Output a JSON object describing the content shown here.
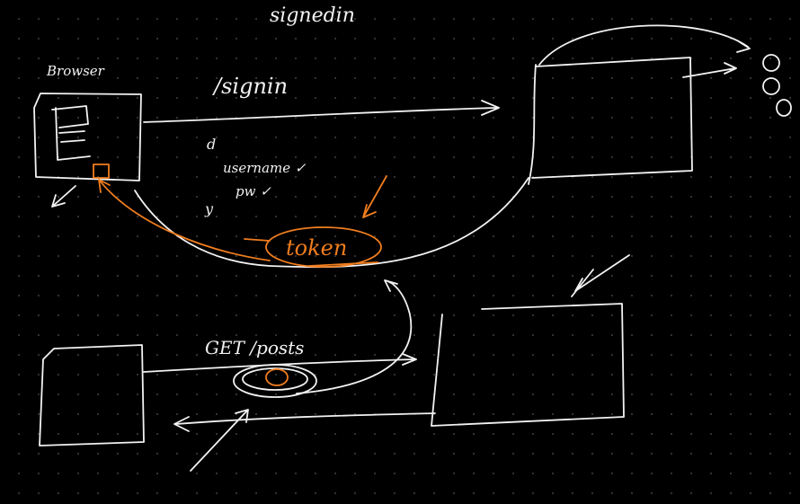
{
  "colors": {
    "background": "#000000",
    "ink_white": "#f2f2f2",
    "ink_orange": "#f07d1e",
    "grid_dot": "#3a3a3a"
  },
  "labels": {
    "top_title": "signedin",
    "browser": "Browser",
    "signin_route": "/signin",
    "field_1": "username ✓",
    "field_2": "pw ✓",
    "bullet_d": "d",
    "bullet_y": "y",
    "token": "token",
    "get_posts": "GET /posts"
  }
}
